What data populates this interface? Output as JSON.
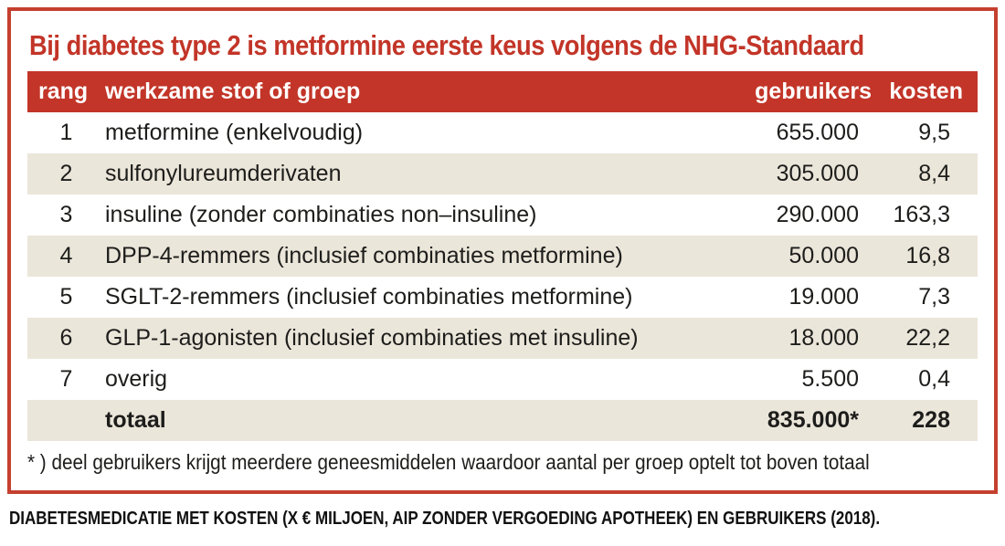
{
  "title": "Bij diabetes type 2 is metformine eerste keus volgens de NHG-Standaard",
  "table": {
    "headers": {
      "rank": "rang",
      "substance": "werkzame stof of groep",
      "users": "gebruikers",
      "costs": "kosten"
    },
    "rows": [
      {
        "rank": "1",
        "substance": "metformine (enkelvoudig)",
        "users": "655.000",
        "costs": "9,5"
      },
      {
        "rank": "2",
        "substance": "sulfonylureumderivaten",
        "users": "305.000",
        "costs": "8,4"
      },
      {
        "rank": "3",
        "substance": "insuline (zonder combinaties non–insuline)",
        "users": "290.000",
        "costs": "163,3"
      },
      {
        "rank": "4",
        "substance": "DPP-4-remmers (inclusief combinaties metformine)",
        "users": "50.000",
        "costs": "16,8"
      },
      {
        "rank": "5",
        "substance": "SGLT-2-remmers (inclusief combinaties metformine)",
        "users": "19.000",
        "costs": "7,3"
      },
      {
        "rank": "6",
        "substance": "GLP-1-agonisten (inclusief combinaties met insuline)",
        "users": "18.000",
        "costs": "22,2"
      },
      {
        "rank": "7",
        "substance": "overig",
        "users": "5.500",
        "costs": "0,4"
      }
    ],
    "total": {
      "label": "totaal",
      "users": "835.000*",
      "costs": "228"
    }
  },
  "footnote": "* ) deel gebruikers krijgt meerdere geneesmiddelen waardoor aantal per groep optelt tot boven totaal",
  "caption": "DIABETESMEDICATIE MET KOSTEN (X € MILJOEN, AIP ZONDER VERGOEDING APOTHEEK) EN GEBRUIKERS (2018).",
  "colors": {
    "accent_red": "#c23528",
    "border_red": "#c5402f",
    "row_alt_bg": "#ebe6da",
    "header_text": "#ffffff",
    "body_text": "#1d1d1b"
  },
  "chart_data": {
    "type": "table",
    "title": "Bij diabetes type 2 is metformine eerste keus volgens de NHG-Standaard",
    "columns": [
      "rang",
      "werkzame stof of groep",
      "gebruikers",
      "kosten"
    ],
    "rows": [
      [
        1,
        "metformine (enkelvoudig)",
        "655.000",
        "9,5"
      ],
      [
        2,
        "sulfonylureumderivaten",
        "305.000",
        "8,4"
      ],
      [
        3,
        "insuline (zonder combinaties non–insuline)",
        "290.000",
        "163,3"
      ],
      [
        4,
        "DPP-4-remmers (inclusief combinaties metformine)",
        "50.000",
        "16,8"
      ],
      [
        5,
        "SGLT-2-remmers (inclusief combinaties metformine)",
        "19.000",
        "7,3"
      ],
      [
        6,
        "GLP-1-agonisten (inclusief combinaties met insuline)",
        "18.000",
        "22,2"
      ],
      [
        7,
        "overig",
        "5.500",
        "0,4"
      ]
    ],
    "total_row": [
      "",
      "totaal",
      "835.000*",
      "228"
    ],
    "footnote": "* ) deel gebruikers krijgt meerdere geneesmiddelen waardoor aantal per groep optelt tot boven totaal",
    "caption": "DIABETESMEDICATIE MET KOSTEN (X € MILJOEN, AIP ZONDER VERGOEDING APOTHEEK) EN GEBRUIKERS (2018)."
  }
}
